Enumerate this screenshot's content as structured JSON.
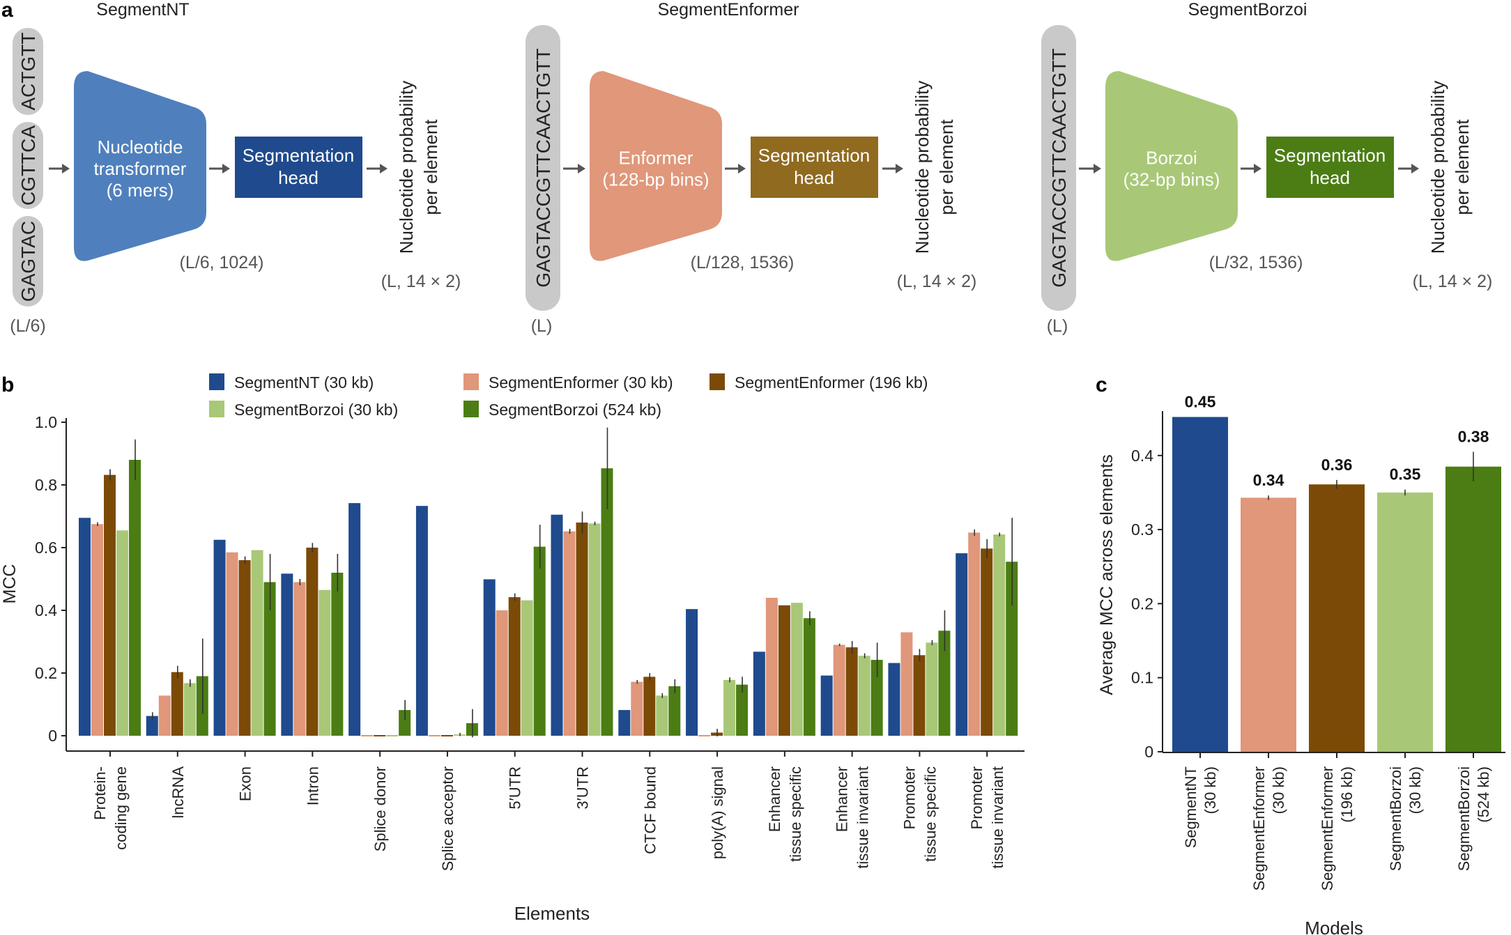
{
  "panel_a": {
    "label": "a",
    "columns": [
      {
        "title": "SegmentNT",
        "input_chunks": [
          "GAGTAC",
          "CGTTCA",
          "ACTGTT"
        ],
        "input_dim": "(L/6)",
        "model_lines": [
          "Nucleotide",
          "transformer",
          "(6 mers)"
        ],
        "model_dim": "(L/6, 1024)",
        "head_lines": [
          "Segmentation",
          "head"
        ],
        "output_lines": [
          "Nucleotide probability",
          "per element"
        ],
        "output_dim": "(L, 14 × 2)",
        "colors": {
          "model": "#4f80bd",
          "head": "#1f4a8d"
        }
      },
      {
        "title": "SegmentEnformer",
        "input_chunks": [
          "GAGTACCGTTCAACTGTT"
        ],
        "input_dim": "(L)",
        "model_lines": [
          "Enformer",
          "(128-bp bins)"
        ],
        "model_dim": "(L/128, 1536)",
        "head_lines": [
          "Segmentation",
          "head"
        ],
        "output_lines": [
          "Nucleotide probability",
          "per element"
        ],
        "output_dim": "(L, 14 × 2)",
        "colors": {
          "model": "#e0977a",
          "head": "#8f6a1f"
        }
      },
      {
        "title": "SegmentBorzoi",
        "input_chunks": [
          "GAGTACCGTTCAACTGTT"
        ],
        "input_dim": "(L)",
        "model_lines": [
          "Borzoi",
          "(32-bp bins)"
        ],
        "model_dim": "(L/32, 1536)",
        "head_lines": [
          "Segmentation",
          "head"
        ],
        "output_lines": [
          "Nucleotide probability",
          "per element"
        ],
        "output_dim": "(L, 14 × 2)",
        "colors": {
          "model": "#a8c877",
          "head": "#4b7d14"
        }
      }
    ]
  },
  "chart_data": [
    {
      "panel": "b",
      "type": "bar",
      "xlabel": "Elements",
      "ylabel": "MCC",
      "ylim": [
        0,
        1.0
      ],
      "yticks": [
        "0",
        "0.2",
        "0.4",
        "0.6",
        "0.8",
        "1.0"
      ],
      "ytick_values": [
        0,
        0.2,
        0.4,
        0.6,
        0.8,
        1.0
      ],
      "legend_position": "top",
      "categories": [
        [
          "Protein-",
          "coding gene"
        ],
        [
          "lncRNA"
        ],
        [
          "Exon"
        ],
        [
          "Intron"
        ],
        [
          "Splice donor"
        ],
        [
          "Splice acceptor"
        ],
        [
          "5′UTR"
        ],
        [
          "3′UTR"
        ],
        [
          "CTCF bound"
        ],
        [
          "poly(A) signal"
        ],
        [
          "Enhancer",
          "tissue specific"
        ],
        [
          "Enhancer",
          "tissue invariant"
        ],
        [
          "Promoter",
          "tissue specific"
        ],
        [
          "Promoter",
          "tissue invariant"
        ]
      ],
      "series": [
        {
          "name": "SegmentNT (30 kb)",
          "color": "#1f4a8d",
          "values": [
            0.695,
            0.063,
            0.625,
            0.517,
            0.742,
            0.733,
            0.499,
            0.705,
            0.082,
            0.404,
            0.268,
            0.192,
            0.232,
            0.582
          ],
          "errors": [
            0,
            0.012,
            0,
            0,
            0,
            0,
            0,
            0,
            0,
            0,
            0,
            0,
            0,
            0
          ]
        },
        {
          "name": "SegmentEnformer (30 kb)",
          "color": "#e0977a",
          "values": [
            0.675,
            0.128,
            0.585,
            0.49,
            0.0,
            0.0,
            0.4,
            0.652,
            0.172,
            0.0,
            0.44,
            0.29,
            0.33,
            0.648
          ],
          "errors": [
            0.006,
            0,
            0,
            0.01,
            0,
            0,
            0,
            0.008,
            0.006,
            0,
            0,
            0.004,
            0,
            0.01
          ]
        },
        {
          "name": "SegmentEnformer (196 kb)",
          "color": "#7b4a06",
          "values": [
            0.832,
            0.203,
            0.56,
            0.6,
            0.0,
            0.0,
            0.442,
            0.68,
            0.188,
            0.01,
            0.416,
            0.282,
            0.257,
            0.597
          ],
          "errors": [
            0.018,
            0.02,
            0.012,
            0.015,
            0,
            0,
            0.012,
            0.035,
            0.012,
            0.012,
            0,
            0.02,
            0.02,
            0.03
          ]
        },
        {
          "name": "SegmentBorzoi (30 kb)",
          "color": "#a8c877",
          "values": [
            0.655,
            0.168,
            0.592,
            0.465,
            0.0,
            0.004,
            0.432,
            0.677,
            0.128,
            0.178,
            0.424,
            0.255,
            0.297,
            0.642
          ],
          "errors": [
            0,
            0.012,
            0,
            0,
            0,
            0.005,
            0,
            0.006,
            0.008,
            0.008,
            0,
            0.008,
            0.008,
            0.006
          ]
        },
        {
          "name": "SegmentBorzoi (524 kb)",
          "color": "#4b7d14",
          "values": [
            0.88,
            0.19,
            0.49,
            0.52,
            0.082,
            0.04,
            0.603,
            0.853,
            0.158,
            0.163,
            0.375,
            0.242,
            0.335,
            0.555
          ],
          "errors": [
            0.065,
            0.12,
            0.09,
            0.06,
            0.032,
            0.045,
            0.07,
            0.13,
            0.022,
            0.025,
            0.022,
            0.055,
            0.065,
            0.14
          ]
        }
      ]
    },
    {
      "panel": "c",
      "type": "bar",
      "xlabel": "Models",
      "ylabel": "Average MCC across elements",
      "ylim": [
        0,
        0.46
      ],
      "yticks": [
        "0",
        "0.1",
        "0.2",
        "0.3",
        "0.4"
      ],
      "ytick_values": [
        0,
        0.1,
        0.2,
        0.3,
        0.4
      ],
      "categories": [
        [
          "SegmentNT",
          "(30 kb)"
        ],
        [
          "SegmentEnformer",
          "(30 kb)"
        ],
        [
          "SegmentEnformer",
          "(196 kb)"
        ],
        [
          "SegmentBorzoi",
          "(30 kb)"
        ],
        [
          "SegmentBorzoi",
          "(524 kb)"
        ]
      ],
      "values": [
        0.452,
        0.343,
        0.361,
        0.35,
        0.385
      ],
      "errors": [
        0,
        0.003,
        0.006,
        0.004,
        0.02
      ],
      "data_labels": [
        "0.45",
        "0.34",
        "0.36",
        "0.35",
        "0.38"
      ],
      "colors": [
        "#1f4a8d",
        "#e0977a",
        "#7b4a06",
        "#a8c877",
        "#4b7d14"
      ]
    }
  ]
}
